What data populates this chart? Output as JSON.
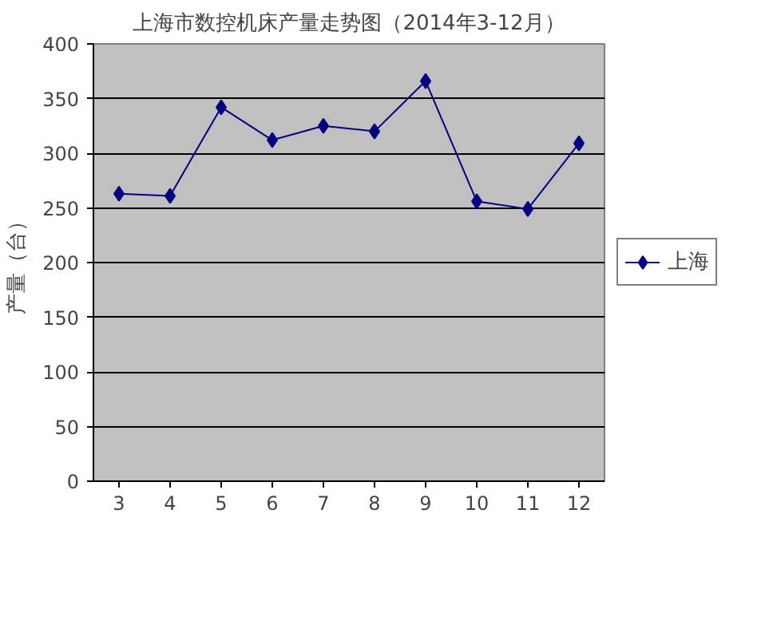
{
  "chart_data": {
    "type": "line",
    "title": "上海市数控机床产量走势图（2014年3-12月）",
    "ylabel": "产量（台）",
    "categories": [
      "3",
      "4",
      "5",
      "6",
      "7",
      "8",
      "9",
      "10",
      "11",
      "12"
    ],
    "series": [
      {
        "name": "上海",
        "color": "#000080",
        "values": [
          263,
          261,
          342,
          312,
          325,
          320,
          366,
          256,
          249,
          309
        ]
      }
    ],
    "ylim": [
      0,
      400
    ],
    "yticks": [
      0,
      50,
      100,
      150,
      200,
      250,
      300,
      350,
      400
    ],
    "grid": "y",
    "legend": "right",
    "marker": "diamond",
    "line_style": "solid"
  }
}
